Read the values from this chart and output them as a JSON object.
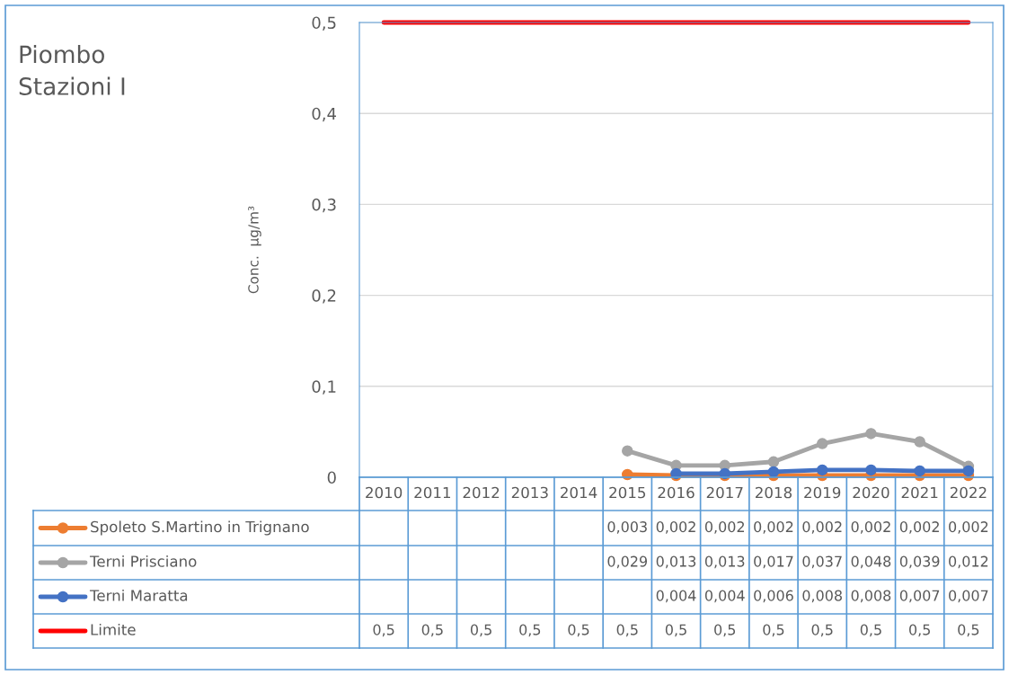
{
  "chart_data": {
    "type": "line",
    "title": "Piombo\nStazioni I",
    "ylabel": "Conc.  µg/m³",
    "categories": [
      "2010",
      "2011",
      "2012",
      "2013",
      "2014",
      "2015",
      "2016",
      "2017",
      "2018",
      "2019",
      "2020",
      "2021",
      "2022"
    ],
    "series": [
      {
        "name": "Spoleto S.Martino in Trignano",
        "color": "#ed7d31",
        "values": [
          null,
          null,
          null,
          null,
          null,
          0.003,
          0.002,
          0.002,
          0.002,
          0.002,
          0.002,
          0.002,
          0.002
        ],
        "value_labels": [
          null,
          null,
          null,
          null,
          null,
          "0,003",
          "0,002",
          "0,002",
          "0,002",
          "0,002",
          "0,002",
          "0,002",
          "0,002"
        ]
      },
      {
        "name": "Terni Prisciano",
        "color": "#a5a5a5",
        "values": [
          null,
          null,
          null,
          null,
          null,
          0.029,
          0.013,
          0.013,
          0.017,
          0.037,
          0.048,
          0.039,
          0.012
        ],
        "value_labels": [
          null,
          null,
          null,
          null,
          null,
          "0,029",
          "0,013",
          "0,013",
          "0,017",
          "0,037",
          "0,048",
          "0,039",
          "0,012"
        ]
      },
      {
        "name": "Terni Maratta",
        "color": "#4472c4",
        "values": [
          null,
          null,
          null,
          null,
          null,
          null,
          0.004,
          0.004,
          0.006,
          0.008,
          0.008,
          0.007,
          0.007
        ],
        "value_labels": [
          null,
          null,
          null,
          null,
          null,
          null,
          "0,004",
          "0,004",
          "0,006",
          "0,008",
          "0,008",
          "0,007",
          "0,007"
        ]
      },
      {
        "name": "Limite",
        "color": "#ff0000",
        "marker": "none",
        "values": [
          0.5,
          0.5,
          0.5,
          0.5,
          0.5,
          0.5,
          0.5,
          0.5,
          0.5,
          0.5,
          0.5,
          0.5,
          0.5
        ],
        "value_labels": [
          "0,5",
          "0,5",
          "0,5",
          "0,5",
          "0,5",
          "0,5",
          "0,5",
          "0,5",
          "0,5",
          "0,5",
          "0,5",
          "0,5",
          "0,5"
        ]
      }
    ],
    "ylim": [
      0,
      0.5
    ],
    "yticks": [
      0,
      {
        "value": 0.1,
        "label": "0,1"
      },
      {
        "value": 0.2,
        "label": "0,2"
      },
      {
        "value": 0.3,
        "label": "0,3"
      },
      {
        "value": 0.4,
        "label": "0,4"
      },
      {
        "value": 0.5,
        "label": "0,5"
      }
    ],
    "grid": "y",
    "legend": "bottom left",
    "marker": "circle",
    "line_style": "solid"
  }
}
